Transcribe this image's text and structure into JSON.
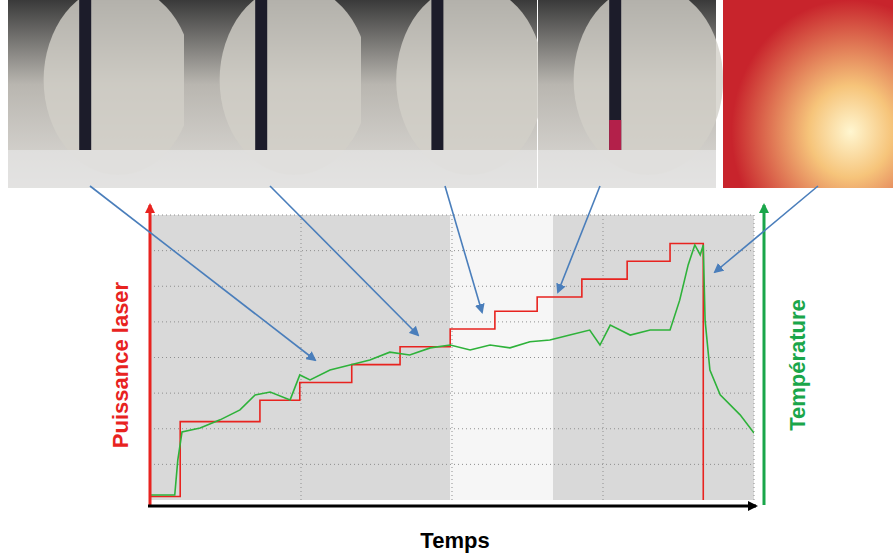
{
  "chart_data": {
    "type": "line",
    "x_label": "Temps",
    "xlim": [
      0,
      100
    ],
    "ylim": [
      0,
      8
    ],
    "xticks": [
      25,
      50,
      75
    ],
    "yticks": [
      1,
      2,
      3,
      4,
      5,
      6,
      7
    ],
    "grid": true,
    "tick_labels": false,
    "series": [
      {
        "name": "Puissance laser",
        "color": "#e8231f",
        "line_style": "step",
        "x": [
          0,
          5.0,
          18.2,
          24.8,
          33.4,
          41.4,
          49.7,
          57.1,
          64.1,
          71.5,
          79.0,
          86.1,
          91.6
        ],
        "values": [
          0.1,
          2.2,
          2.8,
          3.3,
          3.8,
          4.3,
          4.8,
          5.3,
          5.7,
          6.2,
          6.7,
          7.2,
          0
        ]
      },
      {
        "name": "Température",
        "color": "#2eb23a",
        "line_style": "solid",
        "x": [
          0,
          4.1,
          4.6,
          5.3,
          8.3,
          11.6,
          14.9,
          17.4,
          19.9,
          23.2,
          24.8,
          26.5,
          29.8,
          33.1,
          36.4,
          39.7,
          43.0,
          46.4,
          49.7,
          53.0,
          56.3,
          59.6,
          62.9,
          66.2,
          69.5,
          72.8,
          74.5,
          76.2,
          79.5,
          82.8,
          86.1,
          87.7,
          89.1,
          90.2,
          91.1,
          91.6,
          91.9,
          92.7,
          94.4,
          97.7,
          100
        ],
        "values": [
          0.14,
          0.14,
          1.12,
          1.91,
          2.02,
          2.25,
          2.53,
          2.95,
          3.03,
          2.81,
          3.51,
          3.37,
          3.65,
          3.79,
          3.93,
          4.15,
          4.07,
          4.27,
          4.35,
          4.21,
          4.35,
          4.27,
          4.44,
          4.49,
          4.63,
          4.77,
          4.35,
          4.91,
          4.63,
          4.77,
          4.77,
          5.61,
          6.6,
          7.16,
          6.88,
          7.16,
          5.05,
          3.65,
          2.95,
          2.39,
          1.88
        ]
      }
    ]
  }
}
